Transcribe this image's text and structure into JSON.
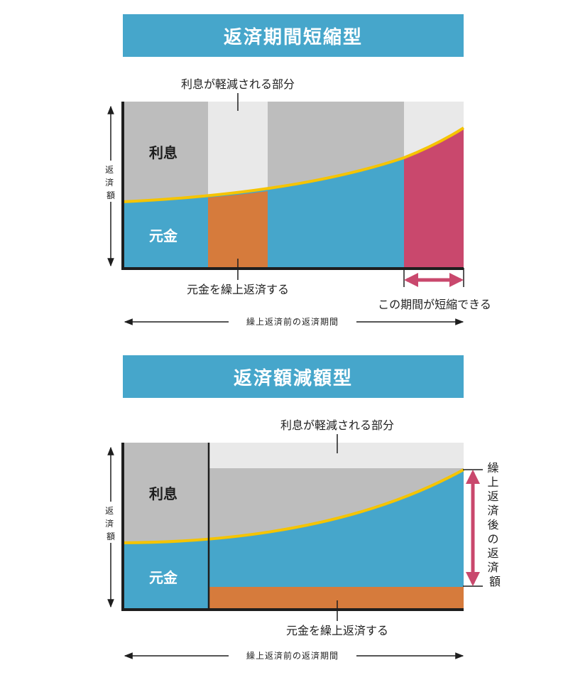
{
  "colors": {
    "banner": "#46a6cb",
    "principal": "#46a6cb",
    "interest": "#bdbdbd",
    "reduced_interest": "#e9e9e9",
    "prepayment": "#d67b3c",
    "shortened": "#c9486d",
    "boundary_line": "#f5c400",
    "axis": "#1e1e1e"
  },
  "section1": {
    "title": "返済期間短縮型",
    "label_interest": "利息",
    "label_principal": "元金",
    "label_reduced": "利息が軽減される部分",
    "label_prepay": "元金を繰上返済する",
    "label_shortened": "この期間が短縮できる",
    "y_axis_label": [
      "返",
      "済",
      "額"
    ],
    "x_axis_label": "繰上返済前の返済期間"
  },
  "section2": {
    "title": "返済額減額型",
    "label_interest": "利息",
    "label_principal": "元金",
    "label_reduced": "利息が軽減される部分",
    "label_prepay": "元金を繰上返済する",
    "label_after": [
      "繰",
      "上",
      "返",
      "済",
      "後",
      "の",
      "返",
      "済",
      "額"
    ],
    "y_axis_label": [
      "返",
      "済",
      "額"
    ],
    "x_axis_label": "繰上返済前の返済期間"
  }
}
